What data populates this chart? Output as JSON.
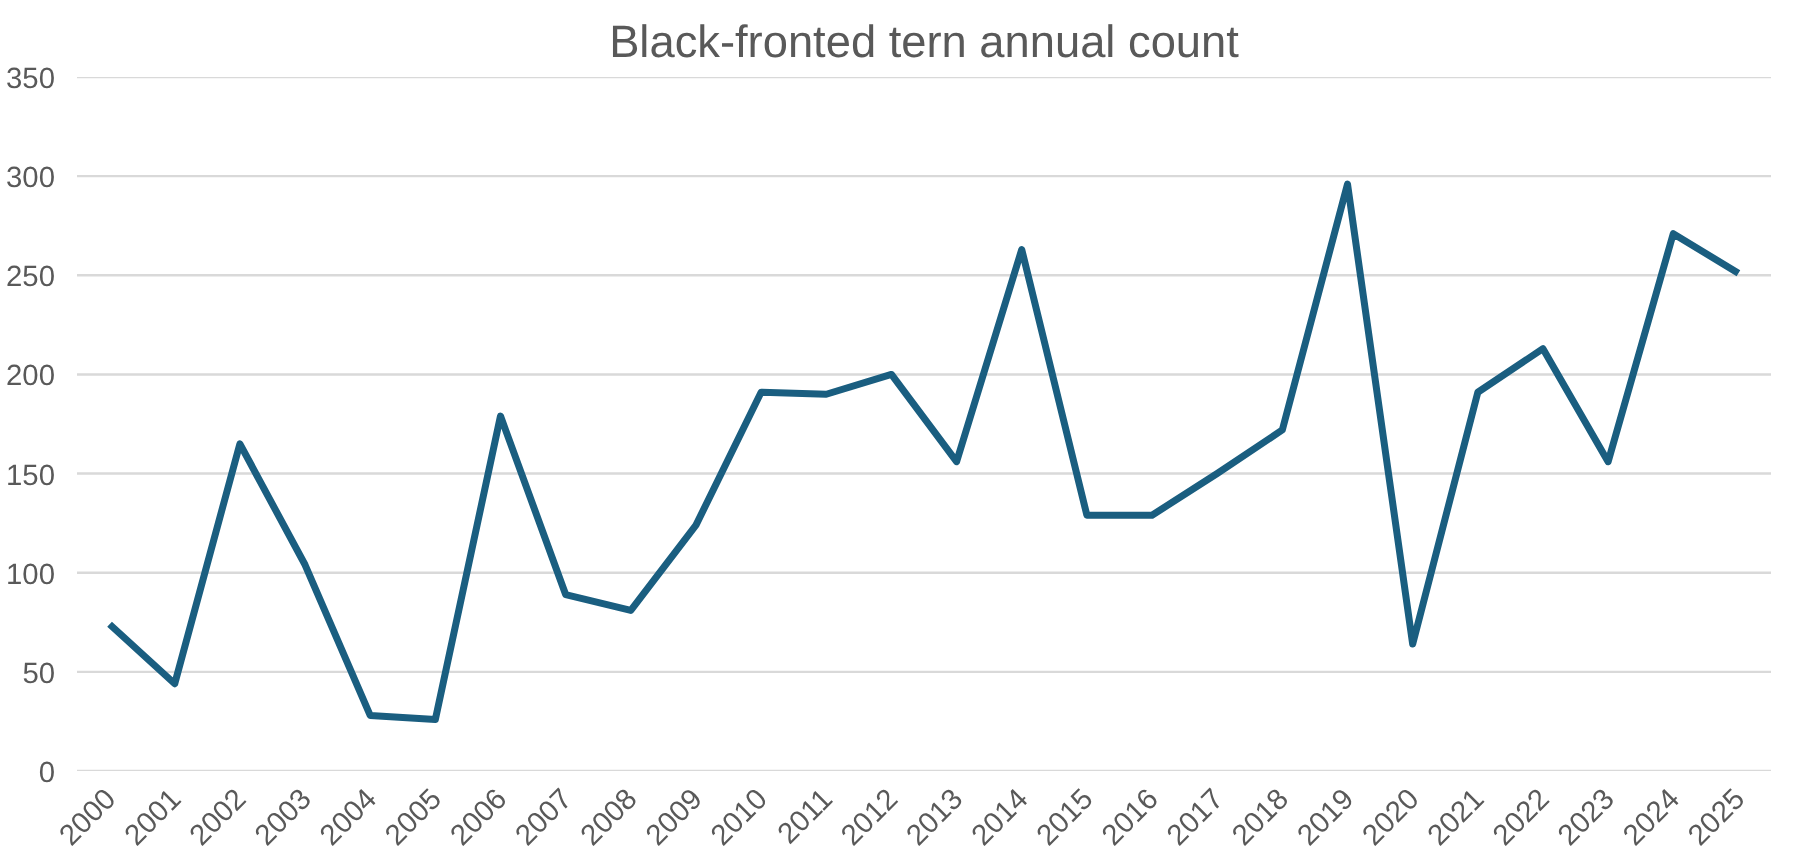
{
  "chart_data": {
    "type": "line",
    "title": "Black-fronted tern annual count",
    "categories": [
      "2000",
      "2001",
      "2002",
      "2003",
      "2004",
      "2005",
      "2006",
      "2007",
      "2008",
      "2009",
      "2010",
      "2011",
      "2012",
      "2013",
      "2014",
      "2015",
      "2016",
      "2017",
      "2018",
      "2019",
      "2020",
      "2021",
      "2022",
      "2023",
      "2024",
      "2025"
    ],
    "series": [
      {
        "color": "#1a5e80",
        "values": [
          74,
          44,
          165,
          104,
          28,
          26,
          179,
          89,
          81,
          124,
          191,
          190,
          200,
          156,
          263,
          129,
          129,
          150,
          172,
          296,
          64,
          191,
          213,
          156,
          271,
          251
        ]
      }
    ],
    "ylim": [
      0,
      350
    ],
    "yticks": [
      0,
      50,
      100,
      150,
      200,
      250,
      300,
      350
    ],
    "grid": "y",
    "marker": "none",
    "line_style": "solid"
  }
}
